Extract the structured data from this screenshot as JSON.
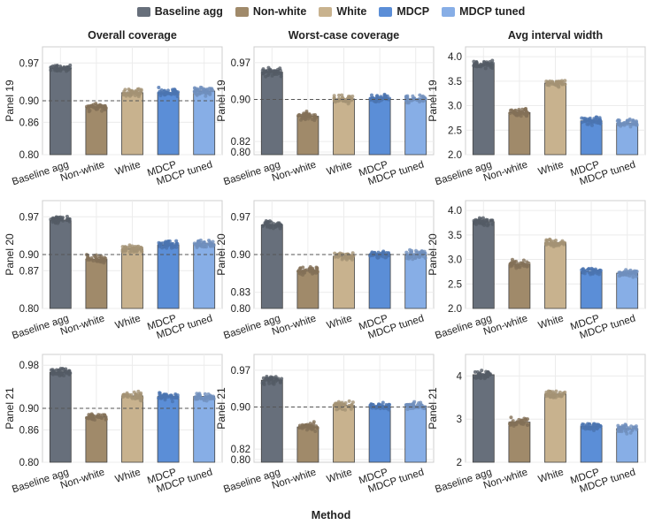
{
  "legend": {
    "items": [
      {
        "label": "Baseline agg",
        "color": "#676f7b"
      },
      {
        "label": "Non-white",
        "color": "#a08a6a"
      },
      {
        "label": "White",
        "color": "#c8b28e"
      },
      {
        "label": "MDCP",
        "color": "#5b8ed7"
      },
      {
        "label": "MDCP tuned",
        "color": "#87aee6"
      }
    ]
  },
  "xlabel": "Method",
  "chart_data": {
    "type": "bar",
    "categories": [
      "Baseline agg",
      "Non-white",
      "White",
      "MDCP",
      "MDCP tuned"
    ],
    "columns": [
      "Overall coverage",
      "Worst-case coverage",
      "Avg interval width"
    ],
    "rows": [
      "Panel 19",
      "Panel 20",
      "Panel 21"
    ],
    "panels": [
      {
        "row": "Panel 19",
        "column": "Overall coverage",
        "ylim": [
          0.8,
          1.0
        ],
        "yticks": [
          "0.80",
          "0.86",
          "0.90",
          "0.97"
        ],
        "yticks_values": [
          0.8,
          0.86,
          0.9,
          0.97
        ],
        "reference_line": 0.9,
        "values": [
          0.96,
          0.888,
          0.915,
          0.915,
          0.918
        ]
      },
      {
        "row": "Panel 19",
        "column": "Worst-case coverage",
        "ylim": [
          0.795,
          1.0
        ],
        "yticks": [
          "0.80",
          "0.82",
          "0.90",
          "0.97"
        ],
        "yticks_values": [
          0.8,
          0.82,
          0.9,
          0.97
        ],
        "reference_line": 0.9,
        "values": [
          0.952,
          0.868,
          0.901,
          0.901,
          0.901
        ]
      },
      {
        "row": "Panel 19",
        "column": "Avg interval width",
        "ylim": [
          2.0,
          4.2
        ],
        "yticks": [
          "2.0",
          "2.5",
          "3.0",
          "3.5",
          "4.0"
        ],
        "yticks_values": [
          2.0,
          2.5,
          3.0,
          3.5,
          4.0
        ],
        "reference_line": null,
        "values": [
          3.84,
          2.86,
          3.46,
          2.69,
          2.64
        ]
      },
      {
        "row": "Panel 20",
        "column": "Overall coverage",
        "ylim": [
          0.8,
          1.0
        ],
        "yticks": [
          "0.80",
          "0.87",
          "0.90",
          "0.97"
        ],
        "yticks_values": [
          0.8,
          0.87,
          0.9,
          0.97
        ],
        "reference_line": 0.9,
        "values": [
          0.963,
          0.891,
          0.91,
          0.918,
          0.92
        ]
      },
      {
        "row": "Panel 20",
        "column": "Worst-case coverage",
        "ylim": [
          0.8,
          1.0
        ],
        "yticks": [
          "0.80",
          "0.83",
          "0.90",
          "0.97"
        ],
        "yticks_values": [
          0.8,
          0.83,
          0.9,
          0.97
        ],
        "reference_line": 0.9,
        "values": [
          0.955,
          0.87,
          0.897,
          0.901,
          0.9
        ]
      },
      {
        "row": "Panel 20",
        "column": "Avg interval width",
        "ylim": [
          2.0,
          4.2
        ],
        "yticks": [
          "2.0",
          "2.5",
          "3.0",
          "3.5",
          "4.0"
        ],
        "yticks_values": [
          2.0,
          2.5,
          3.0,
          3.5,
          4.0
        ],
        "reference_line": null,
        "values": [
          3.77,
          2.9,
          3.34,
          2.75,
          2.72
        ]
      },
      {
        "row": "Panel 21",
        "column": "Overall coverage",
        "ylim": [
          0.8,
          1.0
        ],
        "yticks": [
          "0.80",
          "0.86",
          "0.90",
          "0.98"
        ],
        "yticks_values": [
          0.8,
          0.86,
          0.9,
          0.98
        ],
        "reference_line": 0.9,
        "values": [
          0.967,
          0.884,
          0.923,
          0.922,
          0.922
        ]
      },
      {
        "row": "Panel 21",
        "column": "Worst-case coverage",
        "ylim": [
          0.795,
          1.0
        ],
        "yticks": [
          "0.80",
          "0.82",
          "0.90",
          "0.97"
        ],
        "yticks_values": [
          0.8,
          0.82,
          0.9,
          0.97
        ],
        "reference_line": 0.9,
        "values": [
          0.951,
          0.862,
          0.903,
          0.901,
          0.902
        ]
      },
      {
        "row": "Panel 21",
        "column": "Avg interval width",
        "ylim": [
          2.0,
          4.5
        ],
        "yticks": [
          "2",
          "3",
          "4"
        ],
        "yticks_values": [
          2,
          3,
          4
        ],
        "reference_line": null,
        "values": [
          4.03,
          2.93,
          3.58,
          2.83,
          2.78
        ]
      }
    ]
  }
}
